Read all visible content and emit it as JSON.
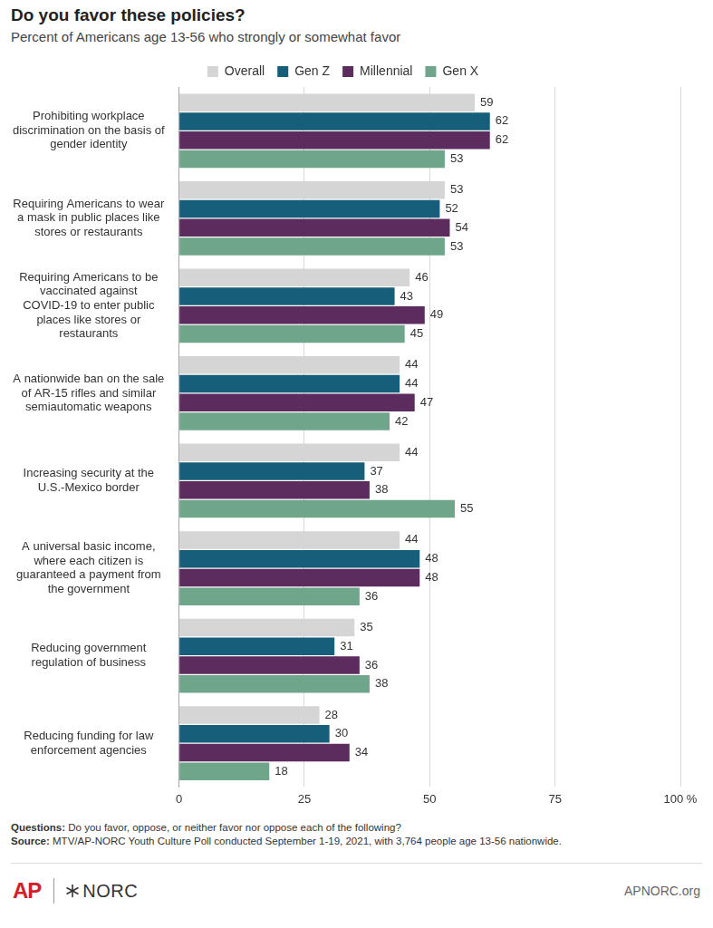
{
  "chart_data": {
    "type": "bar",
    "title": "Do you favor these policies?",
    "subtitle": "Percent of Americans age 13-56 who strongly or somewhat favor",
    "orientation": "horizontal",
    "categories": [
      "Prohibiting workplace discrimination on the basis of gender identity",
      "Requiring Americans to wear a mask in public places like stores or restaurants",
      "Requiring Americans to be vaccinated against COVID-19 to enter public places like stores or restaurants",
      "A nationwide ban on the sale of AR-15 rifles and similar semiautomatic weapons",
      "Increasing security at the U.S.-Mexico border",
      "A universal basic income, where each citizen is guaranteed a payment from the government",
      "Reducing government regulation of business",
      "Reducing funding for law enforcement agencies"
    ],
    "series": [
      {
        "name": "Overall",
        "color": "#d5d5d5",
        "values": [
          59,
          53,
          46,
          44,
          44,
          44,
          35,
          28
        ]
      },
      {
        "name": "Gen Z",
        "color": "#175e7a",
        "values": [
          62,
          52,
          43,
          44,
          37,
          48,
          31,
          30
        ]
      },
      {
        "name": "Millennial",
        "color": "#5c2c5e",
        "values": [
          62,
          54,
          49,
          47,
          38,
          48,
          36,
          34
        ]
      },
      {
        "name": "Gen X",
        "color": "#6fa58a",
        "values": [
          53,
          53,
          45,
          42,
          55,
          36,
          38,
          18
        ]
      }
    ],
    "xlim": [
      0,
      100
    ],
    "xticks": [
      0,
      25,
      50,
      75,
      {
        "value": 100,
        "label": "100 %"
      }
    ],
    "grid": true,
    "legend": "top",
    "data_labels": true,
    "notes": [
      {
        "label": "Questions:",
        "text": "Do you favor, oppose, or neither favor nor oppose each of the following?"
      },
      {
        "label": "Source:",
        "text": "MTV/AP-NORC Youth Culture Poll conducted September 1-19, 2021, with 3,764 people age 13-56 nationwide."
      }
    ],
    "logos": [
      "AP",
      "NORC"
    ],
    "website": "APNORC.org"
  }
}
